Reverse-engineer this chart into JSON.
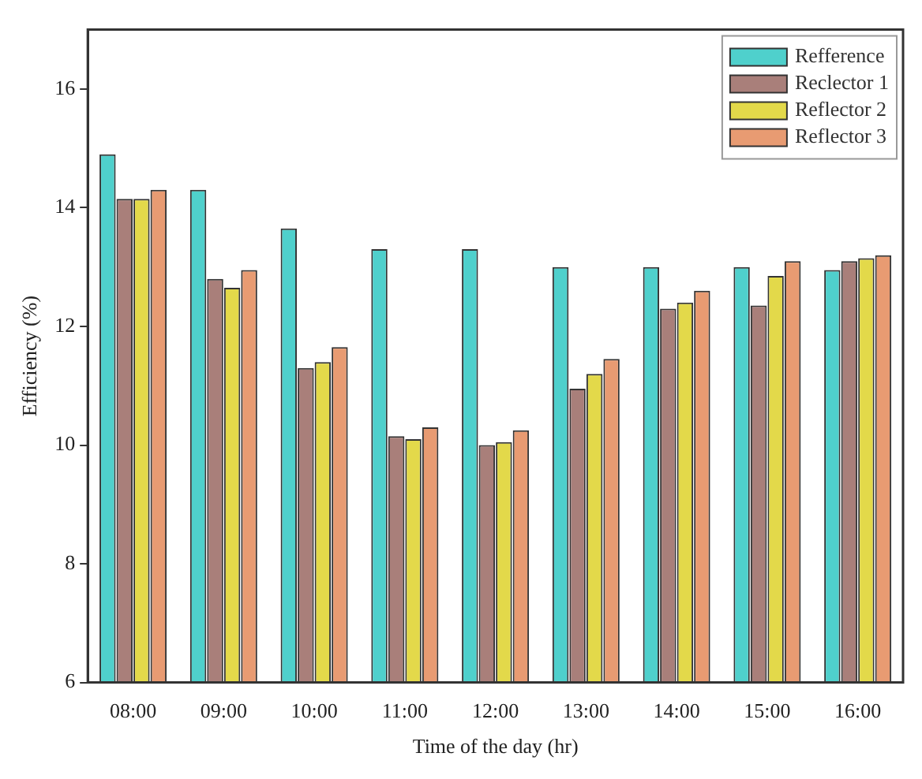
{
  "chart_data": {
    "type": "bar",
    "xlabel": "Time of the day (hr)",
    "ylabel": "Efficiency (%)",
    "categories": [
      "08:00",
      "09:00",
      "10:00",
      "11:00",
      "12:00",
      "13:00",
      "14:00",
      "15:00",
      "16:00"
    ],
    "series": [
      {
        "name": "Refference",
        "color": "#4fd0cc",
        "values": [
          14.9,
          14.3,
          13.65,
          13.3,
          13.3,
          13.0,
          13.0,
          13.0,
          12.95
        ]
      },
      {
        "name": "Reclector 1",
        "color": "#a97f7a",
        "values": [
          14.15,
          12.8,
          11.3,
          10.15,
          10.0,
          10.95,
          12.3,
          12.35,
          13.1
        ]
      },
      {
        "name": "Reflector 2",
        "color": "#e3d94a",
        "values": [
          14.15,
          12.65,
          11.4,
          10.1,
          10.05,
          11.2,
          12.4,
          12.85,
          13.15
        ]
      },
      {
        "name": "Reflector 3",
        "color": "#e89b72",
        "values": [
          14.3,
          12.95,
          11.65,
          10.3,
          10.25,
          11.45,
          12.6,
          13.1,
          13.2
        ]
      }
    ],
    "ylim": [
      6,
      17
    ],
    "yticks": [
      6,
      8,
      10,
      12,
      14,
      16
    ],
    "grid": false,
    "legend": "top right"
  }
}
